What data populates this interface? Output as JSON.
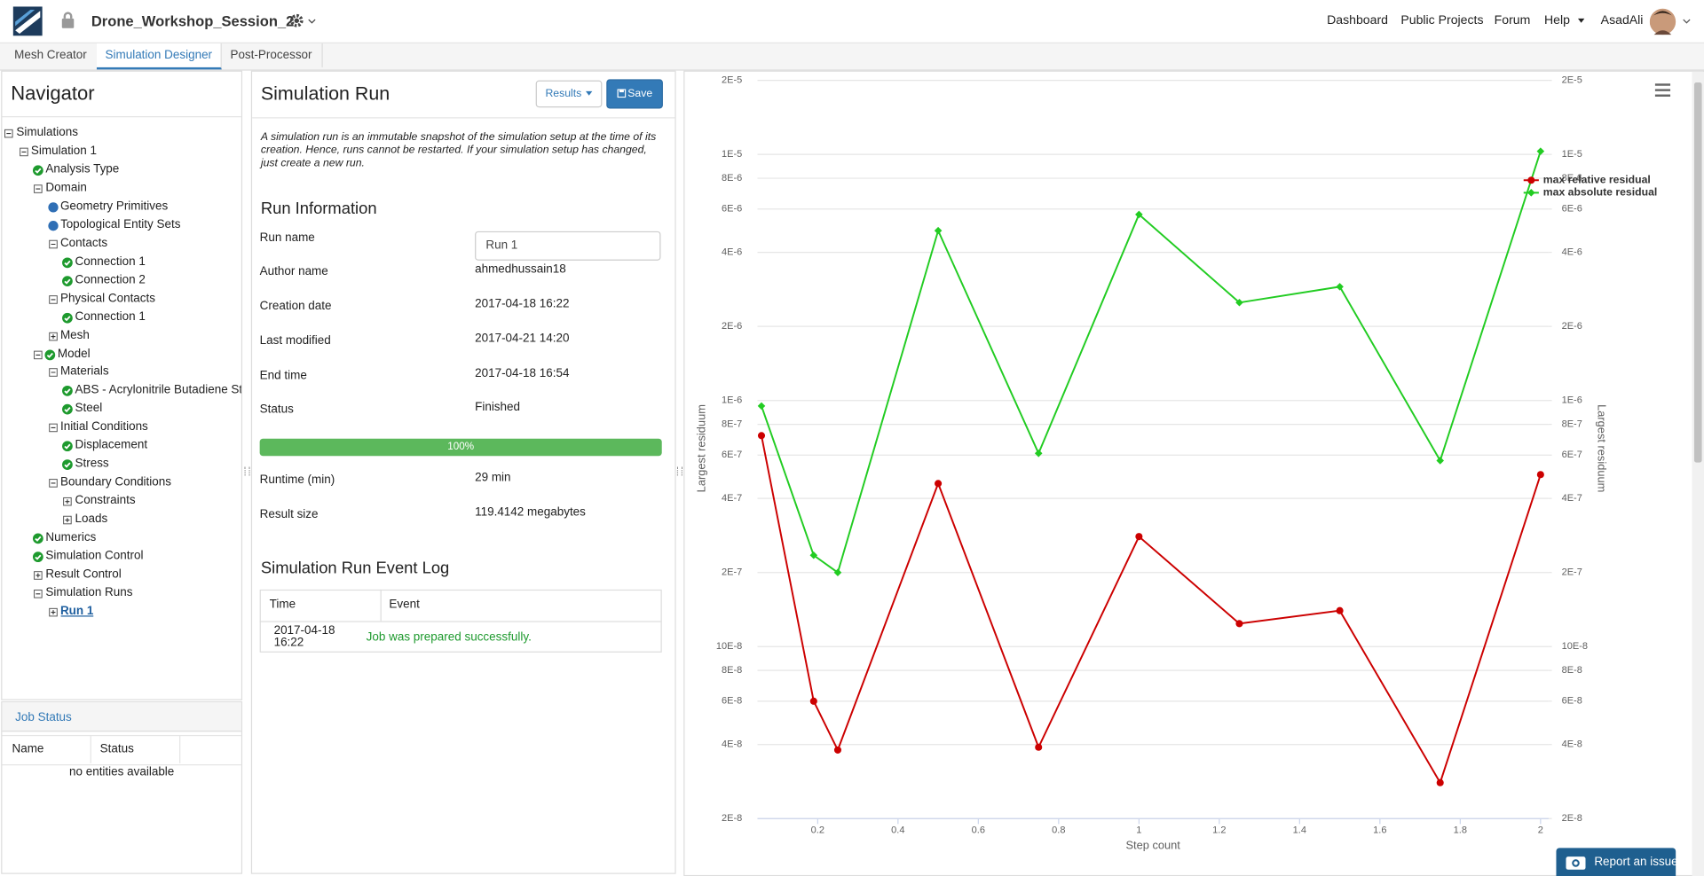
{
  "header": {
    "project": "Drone_Workshop_Session_2",
    "nav": [
      "Dashboard",
      "Public Projects",
      "Forum",
      "Help"
    ],
    "user": "AsadAli"
  },
  "tabs": {
    "items": [
      "Mesh Creator",
      "Simulation Designer",
      "Post-Processor"
    ],
    "active": 1
  },
  "navigator": {
    "title": "Navigator",
    "tree": [
      {
        "label": "Simulations",
        "depth": 0,
        "icons": [
          "minus"
        ]
      },
      {
        "label": "Simulation 1",
        "depth": 1,
        "icons": [
          "minus"
        ]
      },
      {
        "label": "Analysis Type",
        "depth": 2,
        "icons": [
          "check"
        ]
      },
      {
        "label": "Domain",
        "depth": 2,
        "icons": [
          "minus"
        ]
      },
      {
        "label": "Geometry Primitives",
        "depth": 3,
        "icons": [
          "dot"
        ]
      },
      {
        "label": "Topological Entity Sets",
        "depth": 3,
        "icons": [
          "dot"
        ]
      },
      {
        "label": "Contacts",
        "depth": 3,
        "icons": [
          "minus"
        ]
      },
      {
        "label": "Connection 1",
        "depth": 4,
        "icons": [
          "check"
        ]
      },
      {
        "label": "Connection 2",
        "depth": 4,
        "icons": [
          "check"
        ]
      },
      {
        "label": "Physical Contacts",
        "depth": 3,
        "icons": [
          "minus"
        ]
      },
      {
        "label": "Connection 1",
        "depth": 4,
        "icons": [
          "check"
        ]
      },
      {
        "label": "Mesh",
        "depth": 3,
        "icons": [
          "plus"
        ]
      },
      {
        "label": "Model",
        "depth": 2,
        "icons": [
          "minus",
          "check"
        ]
      },
      {
        "label": "Materials",
        "depth": 3,
        "icons": [
          "minus"
        ]
      },
      {
        "label": "ABS - Acrylonitrile Butadiene St...",
        "depth": 4,
        "icons": [
          "check"
        ]
      },
      {
        "label": "Steel",
        "depth": 4,
        "icons": [
          "check"
        ]
      },
      {
        "label": "Initial Conditions",
        "depth": 3,
        "icons": [
          "minus"
        ]
      },
      {
        "label": "Displacement",
        "depth": 4,
        "icons": [
          "check"
        ]
      },
      {
        "label": "Stress",
        "depth": 4,
        "icons": [
          "check"
        ]
      },
      {
        "label": "Boundary Conditions",
        "depth": 3,
        "icons": [
          "minus"
        ]
      },
      {
        "label": "Constraints",
        "depth": 4,
        "icons": [
          "plus"
        ]
      },
      {
        "label": "Loads",
        "depth": 4,
        "icons": [
          "plus"
        ]
      },
      {
        "label": "Numerics",
        "depth": 2,
        "icons": [
          "check"
        ]
      },
      {
        "label": "Simulation Control",
        "depth": 2,
        "icons": [
          "check"
        ]
      },
      {
        "label": "Result Control",
        "depth": 2,
        "icons": [
          "plus"
        ]
      },
      {
        "label": "Simulation Runs",
        "depth": 2,
        "icons": [
          "minus"
        ]
      },
      {
        "label": "Run 1",
        "depth": 3,
        "icons": [
          "plus"
        ],
        "link": true
      }
    ]
  },
  "job_status": {
    "title": "Job Status",
    "columns": [
      "Name",
      "Status"
    ],
    "empty": "no entities available"
  },
  "run": {
    "title": "Simulation Run",
    "buttons": [
      "Results",
      "Save"
    ],
    "description": "A simulation run is an immutable snapshot of the simulation setup at the time of its creation. Hence, runs cannot be restarted. If your simulation setup has changed, just create a new run.",
    "section": "Run Information",
    "fields": [
      {
        "label": "Run name",
        "value": "Run 1",
        "input": true
      },
      {
        "label": "Author name",
        "value": "ahmedhussain18"
      },
      {
        "label": "Creation date",
        "value": "2017-04-18 16:22"
      },
      {
        "label": "Last modified",
        "value": "2017-04-21 14:20"
      },
      {
        "label": "End time",
        "value": "2017-04-18 16:54"
      },
      {
        "label": "Status",
        "value": "Finished"
      },
      {
        "label": "Runtime (min)",
        "value": "29 min"
      },
      {
        "label": "Result size",
        "value": "119.4142 megabytes"
      }
    ],
    "progress": {
      "value": 100,
      "label": "100%"
    },
    "log": {
      "title": "Simulation Run Event Log",
      "columns": [
        "Time",
        "Event"
      ],
      "rows": [
        [
          "2017-04-18 16:22",
          "Job was prepared successfully."
        ]
      ]
    }
  },
  "report": "Report an issue",
  "chart_data": {
    "type": "line",
    "x_label": "Step count",
    "y_label": "Largest residuum",
    "y2_label": "Largest residuum",
    "x": [
      0.06,
      0.19,
      0.25,
      0.5,
      0.75,
      1,
      1.25,
      1.5,
      1.75,
      2
    ],
    "series": [
      {
        "name": "max relative residual",
        "color": "#cc0000",
        "marker": "circle",
        "values": [
          7.2e-07,
          6e-08,
          3.8e-08,
          4.6e-07,
          3.9e-08,
          2.8e-07,
          1.24e-07,
          1.4e-07,
          2.8e-08,
          5e-07
        ]
      },
      {
        "name": "max absolute residual",
        "color": "#22cc22",
        "marker": "diamond",
        "values": [
          9.5e-07,
          2.35e-07,
          2e-07,
          4.9e-06,
          6.1e-07,
          5.7e-06,
          2.5e-06,
          2.9e-06,
          5.7e-07,
          1.03e-05
        ]
      }
    ],
    "xlim": [
      0.05,
      2.02
    ],
    "xticks": [
      0.2,
      0.4,
      0.6,
      0.8,
      1,
      1.2,
      1.4,
      1.6,
      1.8,
      2
    ],
    "ylim": [
      2e-08,
      2e-05
    ],
    "y_scale": "log",
    "yticks": [
      {
        "value": 2e-05,
        "label": "2E-5"
      },
      {
        "value": 1e-05,
        "label": "1E-5"
      },
      {
        "value": 8e-06,
        "label": "8E-6"
      },
      {
        "value": 6e-06,
        "label": "6E-6"
      },
      {
        "value": 4e-06,
        "label": "4E-6"
      },
      {
        "value": 2e-06,
        "label": "2E-6"
      },
      {
        "value": 1e-06,
        "label": "1E-6"
      },
      {
        "value": 8e-07,
        "label": "8E-7"
      },
      {
        "value": 6e-07,
        "label": "6E-7"
      },
      {
        "value": 4e-07,
        "label": "4E-7"
      },
      {
        "value": 2e-07,
        "label": "2E-7"
      },
      {
        "value": 1e-07,
        "label": "10E-8"
      },
      {
        "value": 8e-08,
        "label": "8E-8"
      },
      {
        "value": 6e-08,
        "label": "6E-8"
      },
      {
        "value": 4e-08,
        "label": "4E-8"
      },
      {
        "value": 2e-08,
        "label": "2E-8"
      }
    ],
    "y2lim": [
      2e-08,
      2e-05
    ],
    "y2ticks": [
      {
        "value": 2e-05,
        "label": "2E-5"
      },
      {
        "value": 1e-05,
        "label": "1E-5"
      },
      {
        "value": 8e-06,
        "label": "8E-6"
      },
      {
        "value": 6e-06,
        "label": "6E-6"
      },
      {
        "value": 4e-06,
        "label": "4E-6"
      },
      {
        "value": 2e-06,
        "label": "2E-6"
      },
      {
        "value": 1e-06,
        "label": "1E-6"
      },
      {
        "value": 8e-07,
        "label": "8E-7"
      },
      {
        "value": 6e-07,
        "label": "6E-7"
      },
      {
        "value": 4e-07,
        "label": "4E-7"
      },
      {
        "value": 2e-07,
        "label": "2E-7"
      },
      {
        "value": 1e-07,
        "label": "10E-8"
      },
      {
        "value": 8e-08,
        "label": "8E-8"
      },
      {
        "value": 6e-08,
        "label": "6E-8"
      },
      {
        "value": 4e-08,
        "label": "4E-8"
      },
      {
        "value": 2e-08,
        "label": "2E-8"
      }
    ],
    "grid": true,
    "legend": "upper-right"
  }
}
